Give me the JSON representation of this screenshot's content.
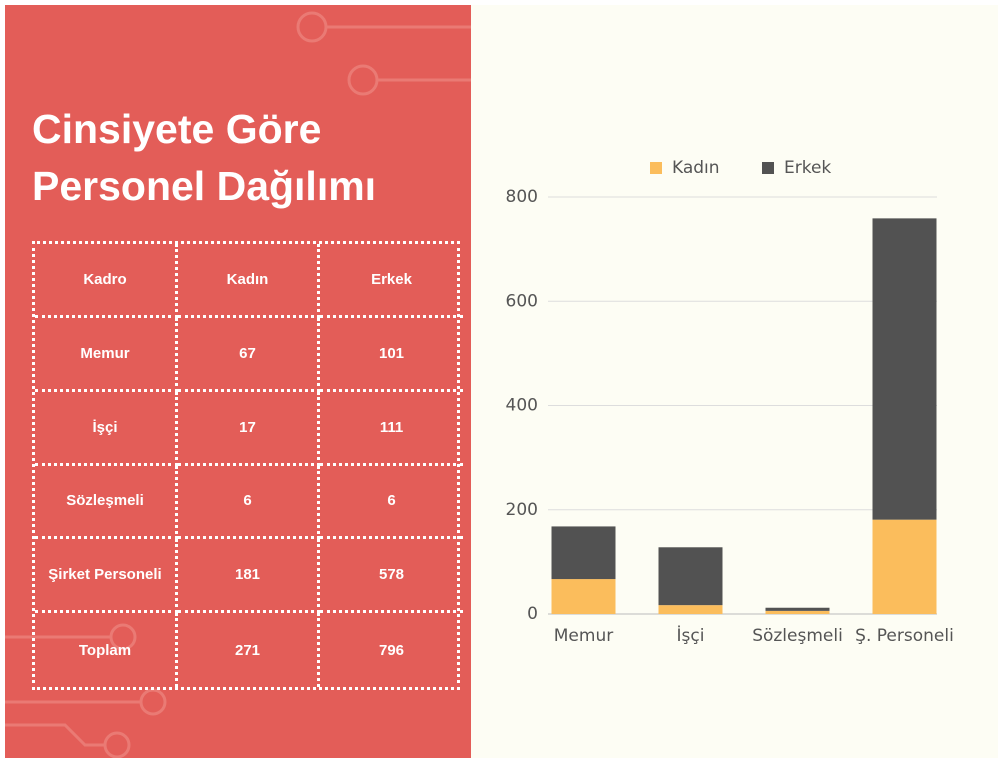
{
  "title": "Cinsiyete Göre Personel Dağılımı",
  "table": {
    "header": [
      "Kadro",
      "Kadın",
      "Erkek"
    ],
    "rows": [
      [
        "Memur",
        "67",
        "101"
      ],
      [
        "İşçi",
        "17",
        "111"
      ],
      [
        "Sözleşmeli",
        "6",
        "6"
      ],
      [
        "Şirket Personeli",
        "181",
        "578"
      ],
      [
        "Toplam",
        "271",
        "796"
      ]
    ]
  },
  "chart_data": {
    "type": "stacked_bar",
    "categories": [
      "Memur",
      "İşçi",
      "Sözleşmeli",
      "Ş. Personeli"
    ],
    "series": [
      {
        "name": "Kadın",
        "color": "#fbbd5c",
        "values": [
          67,
          17,
          6,
          181
        ]
      },
      {
        "name": "Erkek",
        "color": "#525252",
        "values": [
          101,
          111,
          6,
          578
        ]
      }
    ],
    "ylim": [
      0,
      800
    ],
    "yticks": [
      0,
      200,
      400,
      600,
      800
    ],
    "grid": true,
    "legend": "top"
  }
}
